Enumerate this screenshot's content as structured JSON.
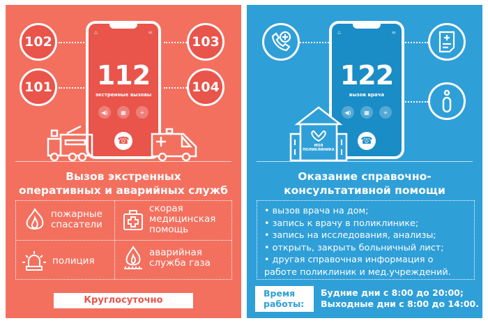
{
  "left": {
    "phone": {
      "number": "112",
      "caption": "экстренные вызовы"
    },
    "circles": [
      "102",
      "101",
      "103",
      "104"
    ],
    "title_line1": "Вызов экстренных",
    "title_line2": "оперативных и аварийных служб",
    "services": [
      {
        "icon": "fire-icon",
        "line1": "пожарные",
        "line2": "спасатели"
      },
      {
        "icon": "first-aid-kit-icon",
        "line1": "скорая",
        "line2": "медицинская",
        "line3": "помощь"
      },
      {
        "icon": "siren-icon",
        "line1": "полиция"
      },
      {
        "icon": "gas-flame-icon",
        "line1": "аварийная",
        "line2": "служба газа"
      }
    ],
    "schedule": "Круглосуточно",
    "colors": {
      "background": "#f3705f",
      "accent": "#e9544b"
    }
  },
  "right": {
    "phone": {
      "number": "122",
      "caption": "вызов врача"
    },
    "clinic_logo": "МОЯ ПОЛИКЛИНИКА",
    "title_line1": "Оказание справочно-",
    "title_line2": "консультативной помощи",
    "items": [
      "вызов врача на дом;",
      "запись к врачу в поликлинике;",
      "запись на исследования, анализы;",
      "открыть, закрыть больничный лист;",
      "другая справочная информация о работе поликлиник и мед.учреждений."
    ],
    "hours_label_line1": "Время",
    "hours_label_line2": "работы:",
    "hours_line1": "Будние дни с 8:00 до 20:00;",
    "hours_line2": "Выходные дни с 8:00 до 14:00.",
    "colors": {
      "background": "#2f9fd8",
      "accent": "#1a8cc6"
    }
  }
}
